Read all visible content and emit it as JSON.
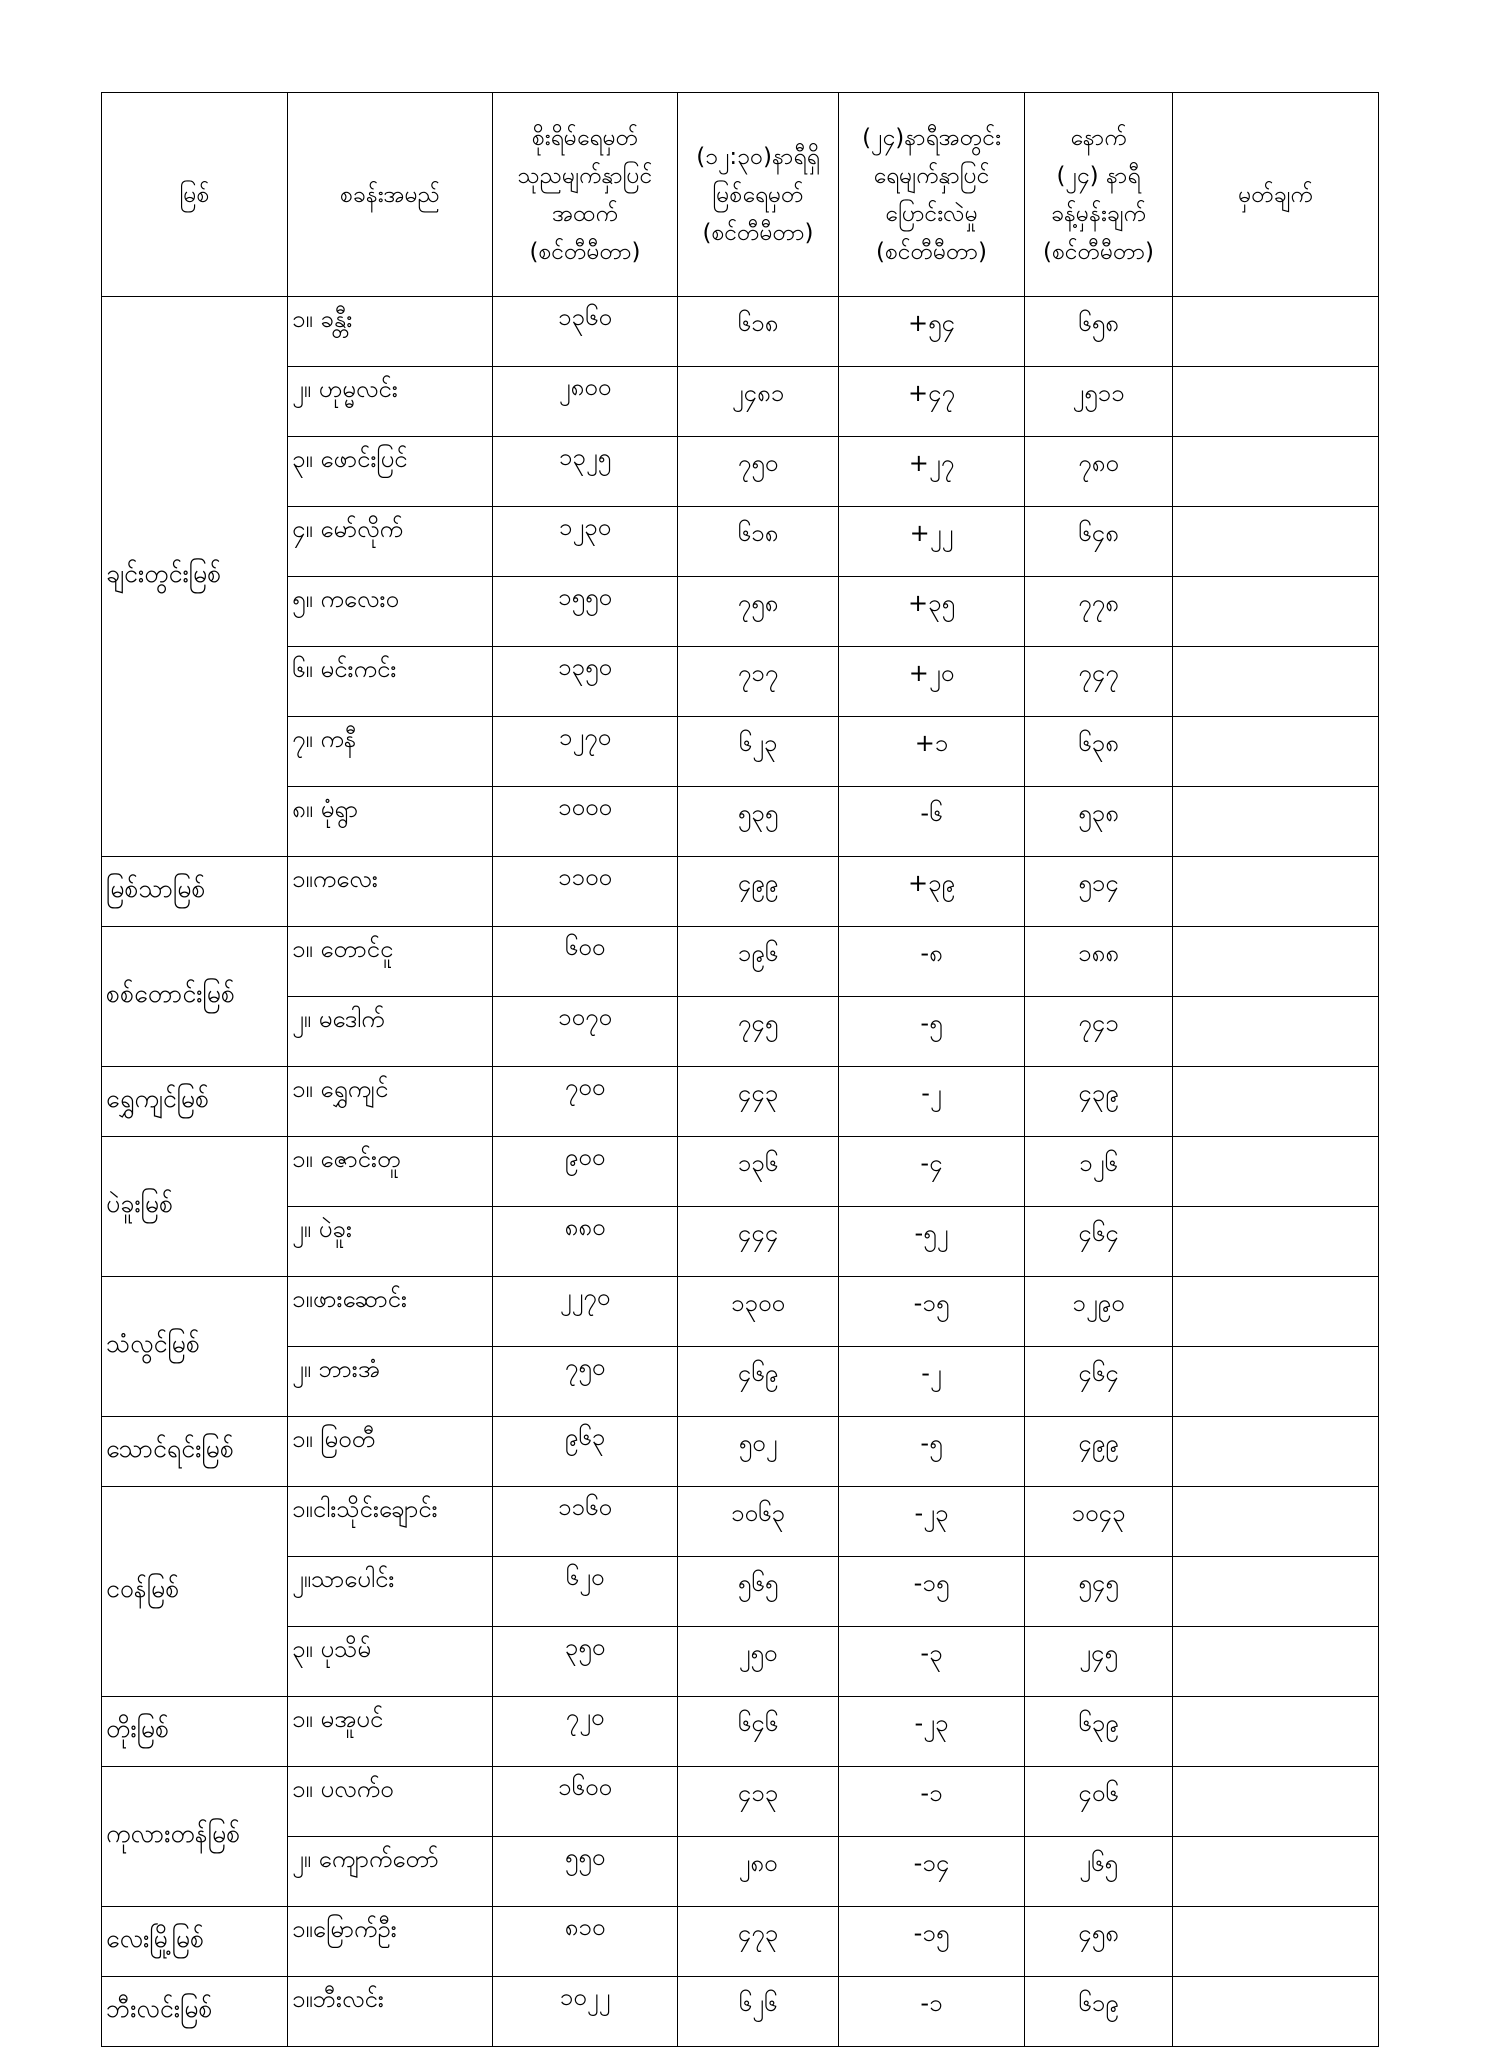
{
  "headers": [
    [
      "မြစ်"
    ],
    [
      "စခန်းအမည်"
    ],
    [
      "စိုးရိမ်ရေမှတ်",
      "သုညမျက်နှာပြင်",
      "အထက်",
      "(စင်တီမီတာ)"
    ],
    [
      "(၁၂:၃၀)နာရီရှိ",
      "မြစ်ရေမှတ်",
      "(စင်တီမီတာ)"
    ],
    [
      "(၂၄)နာရီအတွင်း",
      "ရေမျက်နှာပြင်",
      "ပြောင်းလဲမှု",
      "(စင်တီမီတာ)"
    ],
    [
      "နောက်",
      "(၂၄) နာရီ",
      "ခန့်မှန်းချက်",
      "(စင်တီမီတာ)"
    ],
    [
      "မှတ်ချက်"
    ]
  ],
  "rivers": [
    {
      "name": "ချင်းတွင်းမြစ်",
      "stations": [
        {
          "station": "၁။ ခန္တီး",
          "danger": "၁၃၆၀",
          "level": "၆၁၈",
          "change": "+၅၄",
          "forecast": "၆၅၈",
          "remark": ""
        },
        {
          "station": "၂။ ဟုမ္မလင်း",
          "danger": "၂၈၀၀",
          "level": "၂၄၈၁",
          "change": "+၄၇",
          "forecast": "၂၅၁၁",
          "remark": ""
        },
        {
          "station": "၃။ ဖောင်းပြင်",
          "danger": "၁၃၂၅",
          "level": "၇၅၀",
          "change": "+၂၇",
          "forecast": "၇၈၀",
          "remark": ""
        },
        {
          "station": "၄။ မော်လိုက်",
          "danger": "၁၂၃၀",
          "level": "၆၁၈",
          "change": "+၂၂",
          "forecast": "၆၄၈",
          "remark": ""
        },
        {
          "station": "၅။ ကလေးဝ",
          "danger": "၁၅၅၀",
          "level": "၇၅၈",
          "change": "+၃၅",
          "forecast": "၇၇၈",
          "remark": ""
        },
        {
          "station": "၆။ မင်းကင်း",
          "danger": "၁၃၅၀",
          "level": "၇၁၇",
          "change": "+၂၀",
          "forecast": "၇၄၇",
          "remark": ""
        },
        {
          "station": "၇။ ကနီ",
          "danger": "၁၂၇၀",
          "level": "၆၂၃",
          "change": "+၁",
          "forecast": "၆၃၈",
          "remark": ""
        },
        {
          "station": "၈။ မုံရွာ",
          "danger": "၁၀၀၀",
          "level": "၅၃၅",
          "change": "-၆",
          "forecast": "၅၃၈",
          "remark": ""
        }
      ]
    },
    {
      "name": "မြစ်သာမြစ်",
      "stations": [
        {
          "station": "၁။ကလေး",
          "danger": "၁၁၀၀",
          "level": "၄၉၉",
          "change": "+၃၉",
          "forecast": "၅၁၄",
          "remark": ""
        }
      ]
    },
    {
      "name": "စစ်တောင်းမြစ်",
      "stations": [
        {
          "station": "၁။ တောင်ငူ",
          "danger": "၆၀၀",
          "level": "၁၉၆",
          "change": "-၈",
          "forecast": "၁၈၈",
          "remark": ""
        },
        {
          "station": "၂။ မဒေါက်",
          "danger": "၁၀၇၀",
          "level": "၇၄၅",
          "change": "-၅",
          "forecast": "၇၄၁",
          "remark": ""
        }
      ]
    },
    {
      "name": "ရွှေကျင်မြစ်",
      "stations": [
        {
          "station": "၁။ ရွှေကျင်",
          "danger": "၇၀၀",
          "level": "၄၄၃",
          "change": "-၂",
          "forecast": "၄၃၉",
          "remark": ""
        }
      ]
    },
    {
      "name": "ပဲခူးမြစ်",
      "stations": [
        {
          "station": "၁။ ဇောင်းတူ",
          "danger": "၉၀၀",
          "level": "၁၃၆",
          "change": "-၄",
          "forecast": "၁၂၆",
          "remark": ""
        },
        {
          "station": "၂။ ပဲခူး",
          "danger": "၈၈၀",
          "level": "၄၄၄",
          "change": "-၅၂",
          "forecast": "၄၆၄",
          "remark": ""
        }
      ]
    },
    {
      "name": "သံလွင်မြစ်",
      "stations": [
        {
          "station": "၁။ဖားဆောင်း",
          "danger": "၂၂၇၀",
          "level": "၁၃၀၀",
          "change": "-၁၅",
          "forecast": "၁၂၉၀",
          "remark": ""
        },
        {
          "station": "၂။ ဘားအံ",
          "danger": "၇၅၀",
          "level": "၄၆၉",
          "change": "-၂",
          "forecast": "၄၆၄",
          "remark": ""
        }
      ]
    },
    {
      "name": "သောင်ရင်းမြစ်",
      "stations": [
        {
          "station": "၁။ မြဝတီ",
          "danger": "၉၆၃",
          "level": "၅၀၂",
          "change": "-၅",
          "forecast": "၄၉၉",
          "remark": ""
        }
      ]
    },
    {
      "name": "ငဝန်မြစ်",
      "stations": [
        {
          "station": "၁။ငါးသိုင်းချောင်း",
          "danger": "၁၁၆၀",
          "level": "၁၀၆၃",
          "change": "-၂၃",
          "forecast": "၁၀၄၃",
          "remark": ""
        },
        {
          "station": "၂။သာပေါင်း",
          "danger": "၆၂၀",
          "level": "၅၆၅",
          "change": "-၁၅",
          "forecast": "၅၄၅",
          "remark": ""
        },
        {
          "station": "၃။ ပုသိမ်",
          "danger": "၃၅၀",
          "level": "၂၅၀",
          "change": "-၃",
          "forecast": "၂၄၅",
          "remark": ""
        }
      ]
    },
    {
      "name": "တိုးမြစ်",
      "stations": [
        {
          "station": "၁။ မအူပင်",
          "danger": "၇၂၀",
          "level": "၆၄၆",
          "change": "-၂၃",
          "forecast": "၆၃၉",
          "remark": ""
        }
      ]
    },
    {
      "name": "ကုလားတန်မြစ်",
      "stations": [
        {
          "station": "၁။ ပလက်ဝ",
          "danger": "၁၆၀၀",
          "level": "၄၁၃",
          "change": "-၁",
          "forecast": "၄၀၆",
          "remark": ""
        },
        {
          "station": "၂။ ကျောက်တော်",
          "danger": "၅၅၀",
          "level": "၂၈၀",
          "change": "-၁၄",
          "forecast": "၂၆၅",
          "remark": ""
        }
      ]
    },
    {
      "name": "လေးမြို့မြစ်",
      "stations": [
        {
          "station": "၁။မြောက်ဦး",
          "danger": "၈၁၀",
          "level": "၄၇၃",
          "change": "-၁၅",
          "forecast": "၄၅၈",
          "remark": ""
        }
      ]
    },
    {
      "name": "ဘီးလင်းမြစ်",
      "stations": [
        {
          "station": "၁။ဘီးလင်း",
          "danger": "၁၀၂၂",
          "level": "၆၂၆",
          "change": "-၁",
          "forecast": "၆၁၉",
          "remark": ""
        }
      ]
    }
  ]
}
